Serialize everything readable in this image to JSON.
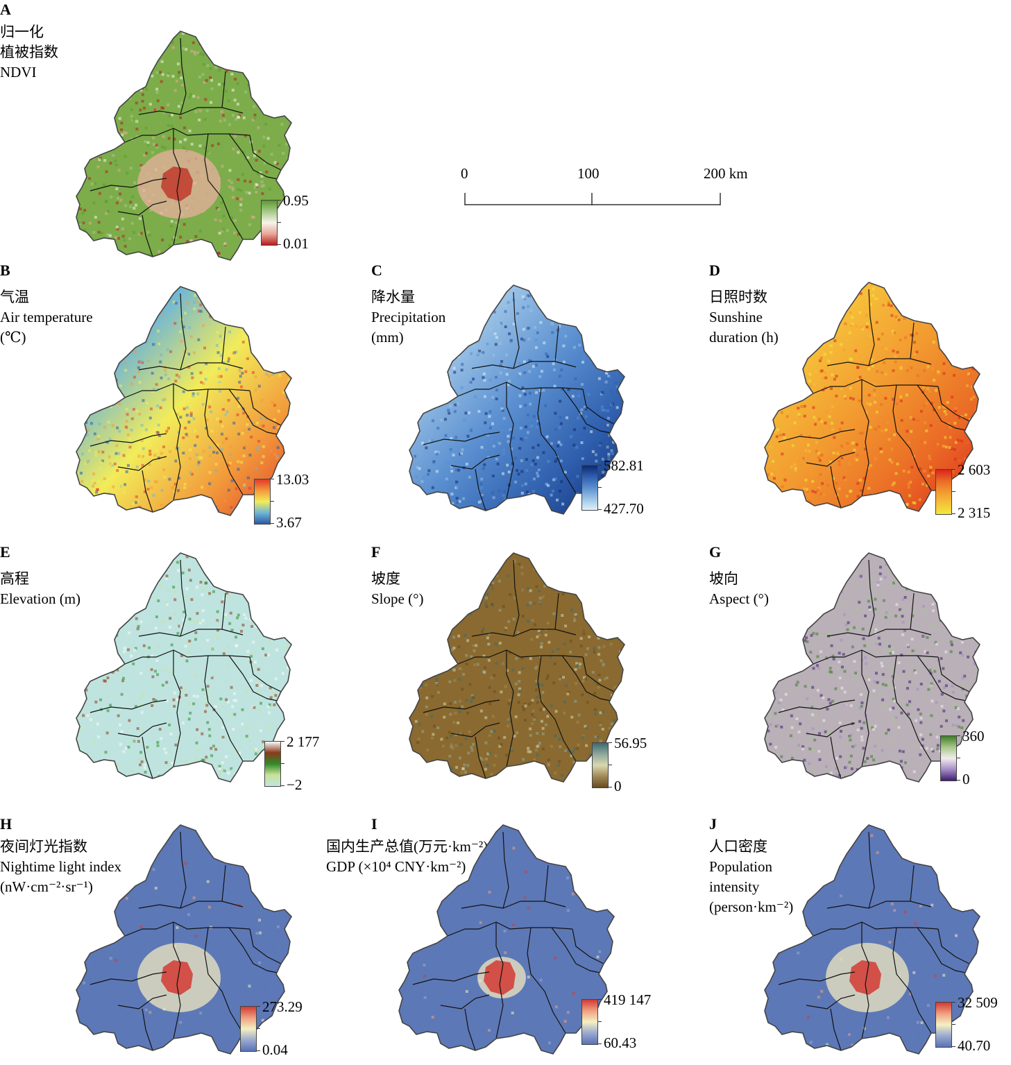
{
  "scale_bar": {
    "labels": [
      "0",
      "100",
      "200 km"
    ]
  },
  "panels": [
    {
      "letter": "A",
      "title": [
        "归一化",
        "植被指数",
        "NDVI"
      ],
      "legend": {
        "max": "0.95",
        "min": "0.01"
      },
      "colors": [
        "#b71d1d",
        "#e8a89a",
        "#f7f4ea",
        "#a7c98a",
        "#5b9a2d"
      ],
      "base": "#7cad4a",
      "accent": "#c0392b"
    },
    {
      "letter": "B",
      "title": [
        "气温",
        "Air temperature",
        "(℃)"
      ],
      "legend": {
        "max": "13.03",
        "min": "3.67"
      },
      "colors": [
        "#2b5aa8",
        "#6fb6d6",
        "#f2ec5a",
        "#f29a3a",
        "#e0392b"
      ],
      "base": "#ee8a3a",
      "accent": "#e0392b"
    },
    {
      "letter": "C",
      "title": [
        "降水量",
        "Precipitation",
        "(mm)"
      ],
      "legend": {
        "max": "582.81",
        "min": "427.70"
      },
      "colors": [
        "#dff0fa",
        "#9cc3e6",
        "#5a8fd0",
        "#2f5fae",
        "#0d2a6e"
      ],
      "base": "#4d7fc6",
      "accent": "#1e4590"
    },
    {
      "letter": "D",
      "title": [
        "日照时数",
        "Sunshine",
        "duration (h)"
      ],
      "legend": {
        "max": "2 603",
        "min": "2 315"
      },
      "colors": [
        "#f0ea3a",
        "#f6c03a",
        "#f29a30",
        "#ea6a25",
        "#d9251e"
      ],
      "base": "#f0962d",
      "accent": "#dd3320"
    },
    {
      "letter": "E",
      "title": [
        "高程",
        "Elevation (m)"
      ],
      "legend": {
        "max": "2 177",
        "min": "−2"
      },
      "colors": [
        "#bfe6e0",
        "#c8e29a",
        "#2f8a2a",
        "#8a3a1a",
        "#fafafa"
      ],
      "base": "#bfe4df",
      "accent": "#7a2e16"
    },
    {
      "letter": "F",
      "title": [
        "坡度",
        "Slope (°)"
      ],
      "legend": {
        "max": "56.95",
        "min": "0"
      },
      "colors": [
        "#6a4a1e",
        "#a08a55",
        "#d9d8b0",
        "#8fa89a",
        "#3b6a74"
      ],
      "base": "#8a6a30",
      "accent": "#5a3f14"
    },
    {
      "letter": "G",
      "title": [
        "坡向",
        "Aspect (°)"
      ],
      "legend": {
        "max": "360",
        "min": "0"
      },
      "colors": [
        "#3f1f6e",
        "#a58cc6",
        "#f2ecee",
        "#a8c889",
        "#3f7d2a"
      ],
      "base": "#b9b0b8",
      "accent": "#3f1f8e"
    },
    {
      "letter": "H",
      "title": [
        "夜间灯光指数",
        "Nightime light index",
        "(nW·cm⁻²·sr⁻¹)"
      ],
      "legend": {
        "max": "273.29",
        "min": "0.04"
      },
      "colors": [
        "#5a72b6",
        "#9aa9cf",
        "#f4f0c2",
        "#f0a080",
        "#d33a33"
      ],
      "base": "#5d78b6",
      "accent": "#d33a33"
    },
    {
      "letter": "I",
      "title": [
        "国内生产总值(万元·km⁻²)",
        "GDP (×10⁴ CNY·km⁻²)"
      ],
      "legend": {
        "max": "419 147",
        "min": "60.43"
      },
      "colors": [
        "#5a72b6",
        "#9aa9cf",
        "#f4f0c2",
        "#f0a080",
        "#d33a33"
      ],
      "base": "#5d78b6",
      "accent": "#d33a33"
    },
    {
      "letter": "J",
      "title": [
        "人口密度",
        "Population",
        "intensity",
        "(person·km⁻²)"
      ],
      "legend": {
        "max": "32 509",
        "min": "40.70"
      },
      "colors": [
        "#5a72b6",
        "#9aa9cf",
        "#f4f0c2",
        "#f0a080",
        "#d33a33"
      ],
      "base": "#5d78b6",
      "accent": "#d33a33"
    }
  ]
}
